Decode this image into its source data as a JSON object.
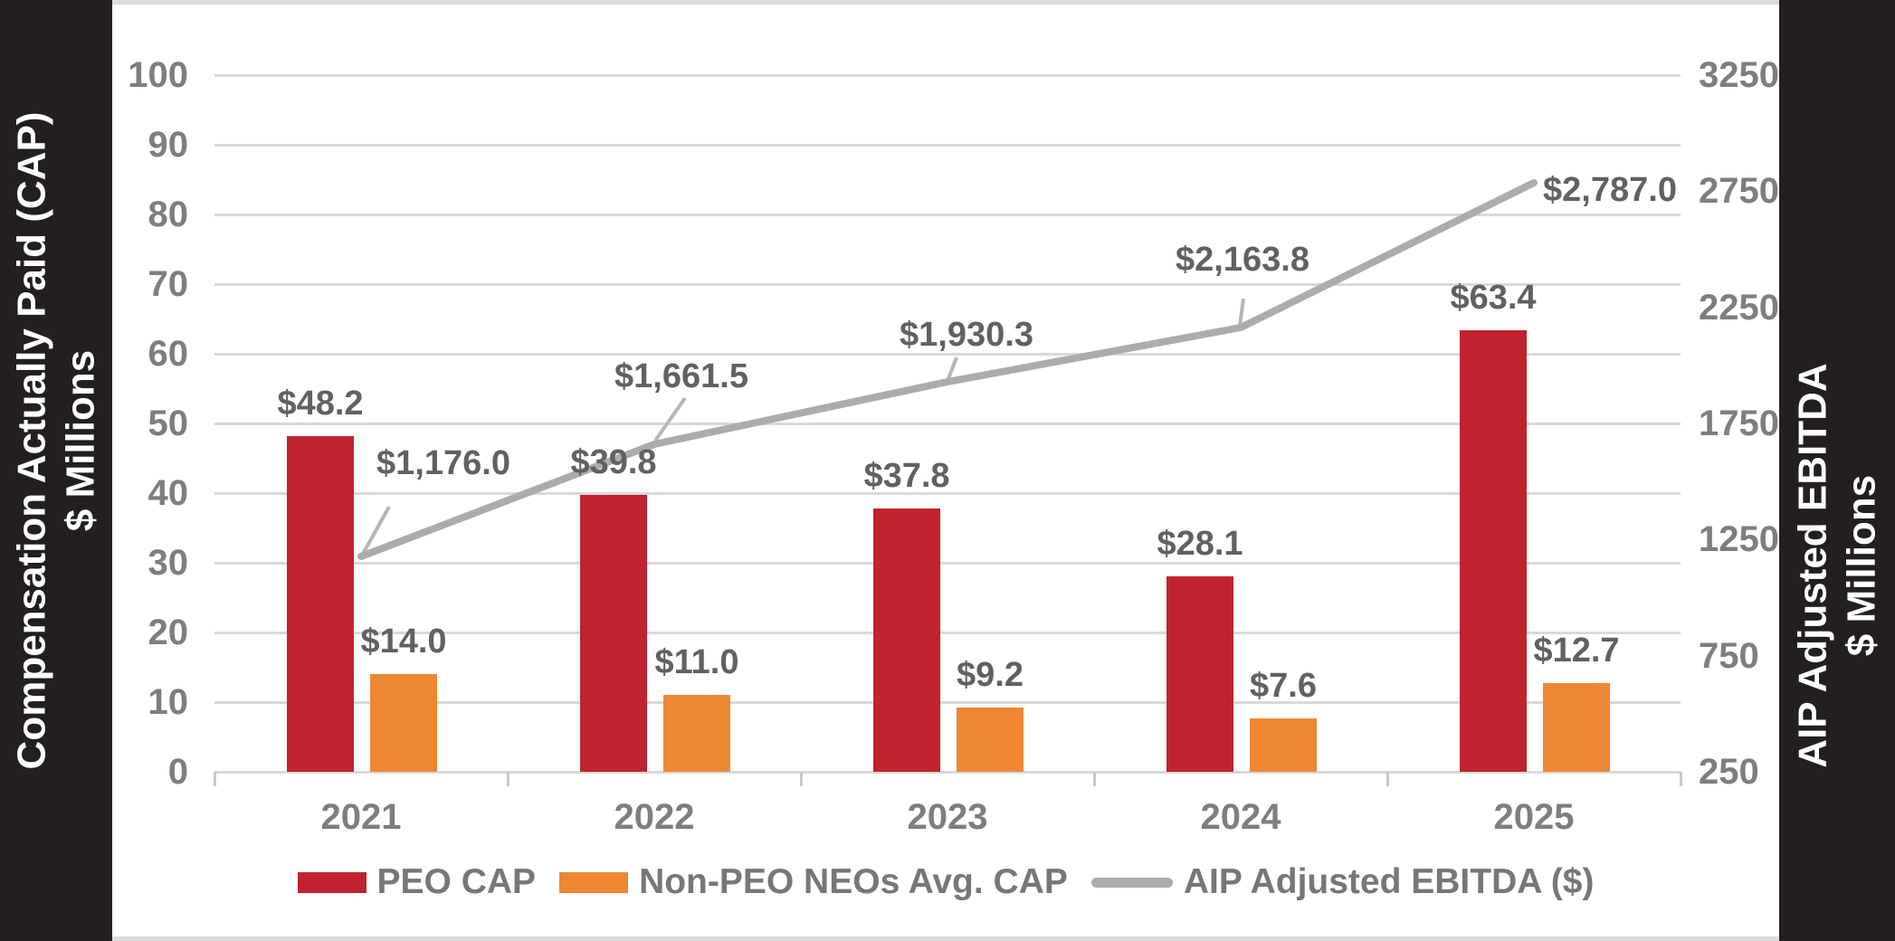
{
  "chart_data": {
    "type": "combo_bar_line",
    "categories": [
      "2021",
      "2022",
      "2023",
      "2024",
      "2025"
    ],
    "series": [
      {
        "name": "PEO CAP",
        "type": "bar",
        "axis": "left",
        "color": "#C1232E",
        "values": [
          48.2,
          39.8,
          37.8,
          28.1,
          63.4
        ],
        "labels": [
          "$48.2",
          "$39.8",
          "$37.8",
          "$28.1",
          "$63.4"
        ]
      },
      {
        "name": "Non-PEO NEOs Avg. CAP",
        "type": "bar",
        "axis": "left",
        "color": "#EE8734",
        "values": [
          14.0,
          11.0,
          9.2,
          7.6,
          12.7
        ],
        "labels": [
          "$14.0",
          "$11.0",
          "$9.2",
          "$7.6",
          "$12.7"
        ]
      },
      {
        "name": "AIP Adjusted EBITDA ($)",
        "type": "line",
        "axis": "right",
        "color": "#ACACAC",
        "values": [
          1176.0,
          1661.5,
          1930.3,
          2163.8,
          2787.0
        ],
        "labels": [
          "$1,176.0",
          "$1,661.5",
          "$1,930.3",
          "$2,163.8",
          "$2,787.0"
        ]
      }
    ],
    "left_axis": {
      "title": [
        "Compensation Actually Paid (CAP)",
        "$ Millions"
      ],
      "min": 0,
      "max": 100,
      "step": 10,
      "ticks": [
        "100",
        "90",
        "80",
        "70",
        "60",
        "50",
        "40",
        "30",
        "20",
        "10",
        "0"
      ]
    },
    "right_axis": {
      "title": [
        "AIP Adjusted EBITDA",
        "$ Millions"
      ],
      "min": 250,
      "max": 3250,
      "step": 500,
      "ticks": [
        "3250",
        "2750",
        "2250",
        "1750",
        "1250",
        "750",
        "250"
      ]
    },
    "legend_position": "bottom",
    "grid": "horizontal",
    "colors": {
      "background": "#231F20",
      "plot_background": "#FFFFFF",
      "gridline": "#D9D9D9",
      "tick_text": "#7C7E81",
      "data_label_text": "#5F6164",
      "legend_text": "#76777A",
      "axis_title_text": "#FFFFFF"
    }
  }
}
